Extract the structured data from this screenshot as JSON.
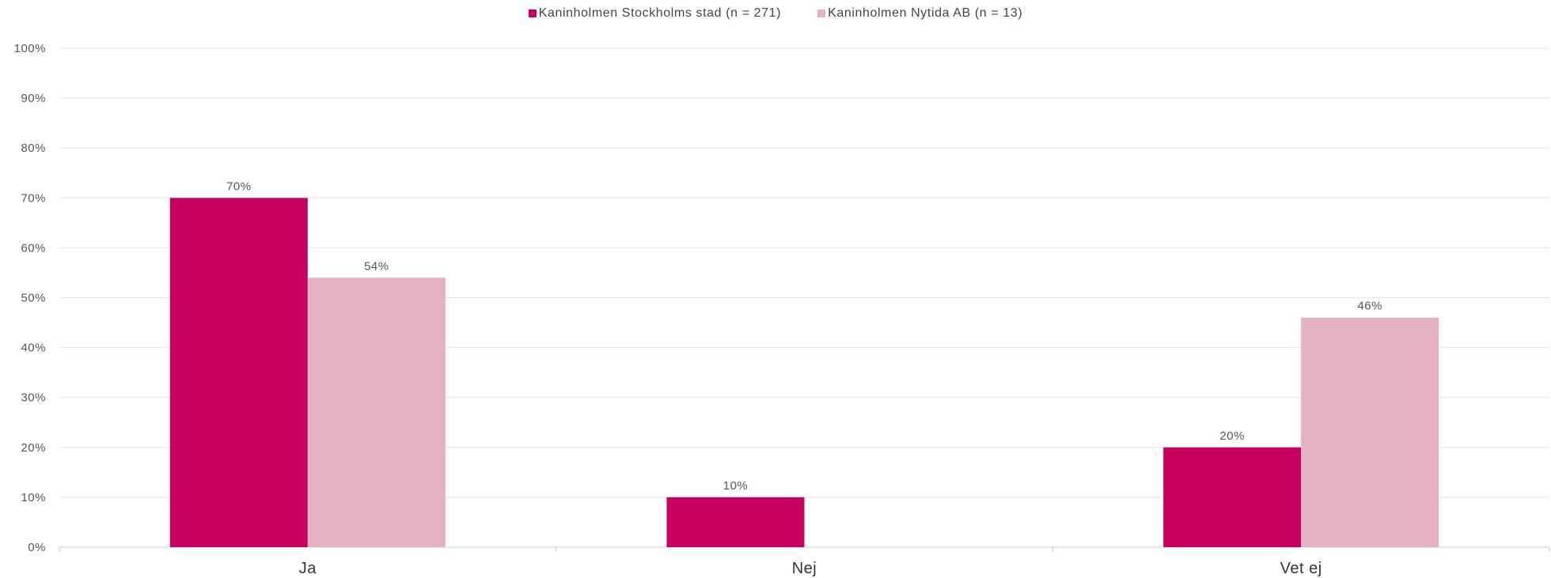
{
  "chart_data": {
    "type": "bar",
    "categories": [
      "Ja",
      "Nej",
      "Vet ej"
    ],
    "series": [
      {
        "name": "Kaninholmen Stockholms stad (n = 271)",
        "color": "#c5005f",
        "values": [
          70,
          10,
          20
        ],
        "labels": [
          "70%",
          "10%",
          "20%"
        ]
      },
      {
        "name": "Kaninholmen Nytida AB (n = 13)",
        "color": "#e3b1c1",
        "values": [
          54,
          0,
          46
        ],
        "labels": [
          "54%",
          "",
          "46%"
        ]
      }
    ],
    "ylim": [
      0,
      100
    ],
    "yticks": [
      0,
      10,
      20,
      30,
      40,
      50,
      60,
      70,
      80,
      90,
      100
    ],
    "ytick_labels": [
      "0%",
      "10%",
      "20%",
      "30%",
      "40%",
      "50%",
      "60%",
      "70%",
      "80%",
      "90%",
      "100%"
    ],
    "grid": true,
    "legend_position": "top-center",
    "title": "",
    "xlabel": "",
    "ylabel": ""
  }
}
